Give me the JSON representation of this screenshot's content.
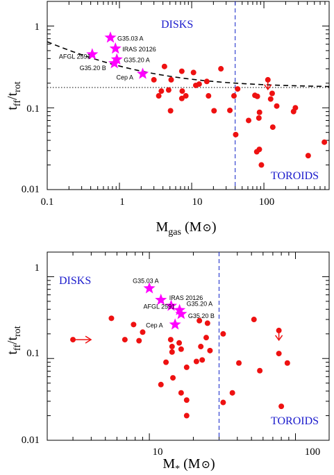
{
  "chart_data": [
    {
      "type": "scatter",
      "xscale": "log",
      "yscale": "log",
      "xlim": [
        0.1,
        800
      ],
      "ylim": [
        0.01,
        2
      ],
      "xticks": [
        "0.1",
        "1",
        "10",
        "100"
      ],
      "yticks": [
        "0.01",
        "0.1",
        "1"
      ],
      "xlabel_main": "M",
      "xlabel_sub": "gas",
      "xlabel_unit": "(M",
      "xlabel_close": ")",
      "ylabel_main": "t",
      "ylabel_sub1": "ff",
      "ylabel_mid": "/t",
      "ylabel_sub2": "rot",
      "region_labels": {
        "disks": "DISKS",
        "toroids": "TOROIDS"
      },
      "vertical_line_x": 40,
      "horizontal_line_y": 0.177,
      "dashed_curve": {
        "a": 0.147,
        "c": 0.177
      },
      "series": [
        {
          "name": "disks",
          "marker": "star",
          "color": "#ff00ff",
          "points": [
            {
              "label": "G35.03 A",
              "x": 0.75,
              "y": 0.72
            },
            {
              "label": "IRAS 20126",
              "x": 0.88,
              "y": 0.53
            },
            {
              "label": "AFGL 2591",
              "x": 0.42,
              "y": 0.45
            },
            {
              "label": "G35.20 A",
              "x": 0.92,
              "y": 0.39
            },
            {
              "label": "G35.20 B",
              "x": 0.85,
              "y": 0.35
            },
            {
              "label": "Cep A",
              "x": 2.1,
              "y": 0.26
            }
          ]
        },
        {
          "name": "toroids",
          "marker": "circle",
          "color": "#ee1111",
          "points": [
            {
              "x": 4.2,
              "y": 0.32
            },
            {
              "x": 7.3,
              "y": 0.28
            },
            {
              "x": 10.6,
              "y": 0.27
            },
            {
              "x": 25.4,
              "y": 0.3
            },
            {
              "x": 3.0,
              "y": 0.22
            },
            {
              "x": 5.2,
              "y": 0.22
            },
            {
              "x": 16.2,
              "y": 0.21
            },
            {
              "x": 12.7,
              "y": 0.195
            },
            {
              "x": 11.4,
              "y": 0.188
            },
            {
              "x": 3.8,
              "y": 0.16
            },
            {
              "x": 4.8,
              "y": 0.165
            },
            {
              "x": 7.4,
              "y": 0.16
            },
            {
              "x": 3.5,
              "y": 0.14
            },
            {
              "x": 8.3,
              "y": 0.14
            },
            {
              "x": 17.1,
              "y": 0.14
            },
            {
              "x": 7.3,
              "y": 0.13
            },
            {
              "x": 38.5,
              "y": 0.14
            },
            {
              "x": 43.3,
              "y": 0.17
            },
            {
              "x": 75.1,
              "y": 0.142
            },
            {
              "x": 81.1,
              "y": 0.138
            },
            {
              "x": 113.5,
              "y": 0.22
            },
            {
              "x": 130.1,
              "y": 0.15
            },
            {
              "x": 124.0,
              "y": 0.128
            },
            {
              "x": 150.5,
              "y": 0.105
            },
            {
              "x": 272.7,
              "y": 0.1
            },
            {
              "x": 257.4,
              "y": 0.09
            },
            {
              "x": 5.1,
              "y": 0.092
            },
            {
              "x": 20.4,
              "y": 0.092
            },
            {
              "x": 33.8,
              "y": 0.093
            },
            {
              "x": 86.9,
              "y": 0.088
            },
            {
              "x": 85.2,
              "y": 0.075
            },
            {
              "x": 61.4,
              "y": 0.07
            },
            {
              "x": 132.7,
              "y": 0.058
            },
            {
              "x": 40.7,
              "y": 0.047
            },
            {
              "x": 86.4,
              "y": 0.031
            },
            {
              "x": 79.6,
              "y": 0.029
            },
            {
              "x": 410.4,
              "y": 0.026
            },
            {
              "x": 92.3,
              "y": 0.02
            },
            {
              "x": 687.3,
              "y": 0.038
            }
          ]
        }
      ],
      "upper_limit_arrows": [
        {
          "x": 113.5,
          "y": 0.2,
          "direction": "down"
        }
      ]
    },
    {
      "type": "scatter",
      "xscale": "log",
      "yscale": "log",
      "xlim": [
        2,
        170
      ],
      "ylim": [
        0.01,
        2
      ],
      "xticks": [
        "10",
        "100"
      ],
      "yticks": [
        "0.01",
        "0.1",
        "1"
      ],
      "xlabel_main": "M",
      "xlabel_sub": "*",
      "xlabel_unit": "(M",
      "xlabel_close": ")",
      "ylabel_main": "t",
      "ylabel_sub1": "ff",
      "ylabel_mid": "/t",
      "ylabel_sub2": "rot",
      "region_labels": {
        "disks": "DISKS",
        "toroids": "TOROIDS"
      },
      "vertical_line_x": 30,
      "series": [
        {
          "name": "disks",
          "marker": "star",
          "color": "#ff00ff",
          "points": [
            {
              "label": "G35.03 A",
              "x": 10.0,
              "y": 0.72
            },
            {
              "label": "IRAS 20126",
              "x": 12.0,
              "y": 0.52
            },
            {
              "label": "AFGL 2591",
              "x": 14.1,
              "y": 0.44
            },
            {
              "label": "G35.20 A",
              "x": 16.1,
              "y": 0.39
            },
            {
              "label": "G35.20 B",
              "x": 16.5,
              "y": 0.35
            },
            {
              "label": "Cep A",
              "x": 15.0,
              "y": 0.26
            }
          ]
        },
        {
          "name": "toroids",
          "marker": "circle",
          "color": "#ee1111",
          "points": [
            {
              "x": 3.0,
              "y": 0.17
            },
            {
              "x": 5.5,
              "y": 0.31
            },
            {
              "x": 6.8,
              "y": 0.17
            },
            {
              "x": 7.8,
              "y": 0.26
            },
            {
              "x": 8.5,
              "y": 0.165
            },
            {
              "x": 9.0,
              "y": 0.21
            },
            {
              "x": 14.0,
              "y": 0.17
            },
            {
              "x": 14.3,
              "y": 0.14
            },
            {
              "x": 14.3,
              "y": 0.12
            },
            {
              "x": 16.0,
              "y": 0.155
            },
            {
              "x": 16.5,
              "y": 0.13
            },
            {
              "x": 22.0,
              "y": 0.29
            },
            {
              "x": 25.0,
              "y": 0.27
            },
            {
              "x": 24.5,
              "y": 0.18
            },
            {
              "x": 22.5,
              "y": 0.14
            },
            {
              "x": 26.0,
              "y": 0.125
            },
            {
              "x": 13.0,
              "y": 0.09
            },
            {
              "x": 21.0,
              "y": 0.092
            },
            {
              "x": 23.0,
              "y": 0.096
            },
            {
              "x": 32.0,
              "y": 0.2
            },
            {
              "x": 52.0,
              "y": 0.3
            },
            {
              "x": 77.0,
              "y": 0.22
            },
            {
              "x": 77.0,
              "y": 0.115
            },
            {
              "x": 41.0,
              "y": 0.088
            },
            {
              "x": 57.0,
              "y": 0.071
            },
            {
              "x": 88.0,
              "y": 0.088
            },
            {
              "x": 12.0,
              "y": 0.048
            },
            {
              "x": 14.5,
              "y": 0.058
            },
            {
              "x": 18.0,
              "y": 0.078
            },
            {
              "x": 16.5,
              "y": 0.038
            },
            {
              "x": 18.0,
              "y": 0.031
            },
            {
              "x": 37.0,
              "y": 0.038
            },
            {
              "x": 32.0,
              "y": 0.029
            },
            {
              "x": 18.0,
              "y": 0.02
            },
            {
              "x": 80.0,
              "y": 0.026
            }
          ]
        }
      ],
      "lower_limit_arrows": [
        {
          "x": 3.0,
          "y": 0.17,
          "direction": "right"
        }
      ],
      "upper_limit_arrows": [
        {
          "x": 77.0,
          "y": 0.2,
          "direction": "down"
        }
      ]
    }
  ]
}
